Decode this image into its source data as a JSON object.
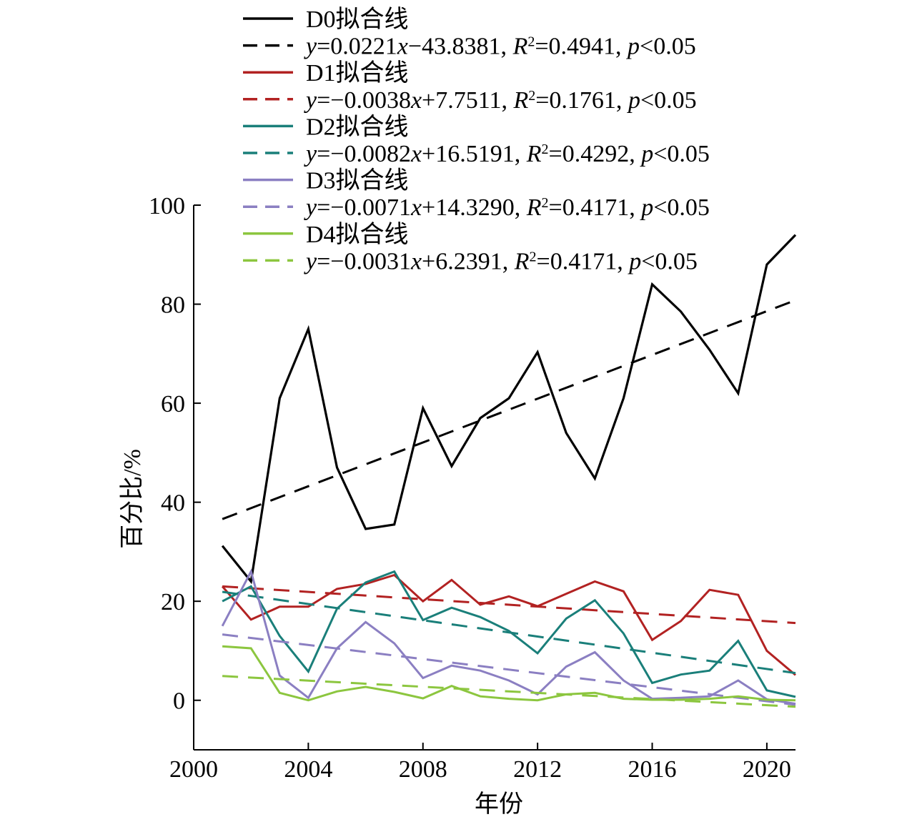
{
  "chart_data": {
    "type": "line",
    "xlabel": "年份",
    "ylabel": "百分比/%",
    "xlim": [
      2000,
      2021
    ],
    "ylim": [
      -10,
      100
    ],
    "xticks": [
      2000,
      2004,
      2008,
      2012,
      2016,
      2020
    ],
    "yticks": [
      0,
      20,
      40,
      60,
      80,
      100
    ],
    "xtick_labels": [
      "2000",
      "2004",
      "2008",
      "2012",
      "2016",
      "2020"
    ],
    "ytick_labels": [
      "0",
      "20",
      "40",
      "60",
      "80",
      "100"
    ],
    "legend_position": "top",
    "x": [
      2001,
      2002,
      2003,
      2004,
      2005,
      2006,
      2007,
      2008,
      2009,
      2010,
      2011,
      2012,
      2013,
      2014,
      2015,
      2016,
      2017,
      2018,
      2019,
      2020,
      2021
    ],
    "series": [
      {
        "name": "D0拟合线",
        "color": "#000000",
        "values": [
          31.2,
          24.0,
          61.0,
          75.0,
          47.0,
          34.6,
          35.5,
          59.0,
          47.3,
          57.0,
          61.0,
          70.3,
          54.0,
          44.8,
          61.0,
          84.0,
          78.5,
          70.8,
          62.0,
          88.0,
          94.0
        ],
        "fit": {
          "slope": 0.0221,
          "intercept": -43.8381,
          "y_start": 36.6,
          "y_end": 80.8,
          "eq_prefix": "y",
          "eq_mid": "=0.0221",
          "eq_x": "x",
          "eq_rest": "−43.8381, ",
          "r_label": "R",
          "r_sup": "2",
          "r_val": "=0.4941, ",
          "p_label": "p",
          "p_rest": "<0.05"
        }
      },
      {
        "name": "D1拟合线",
        "color": "#b22222",
        "values": [
          23.0,
          16.3,
          18.9,
          18.9,
          22.5,
          23.5,
          25.3,
          20.0,
          24.3,
          19.3,
          21.0,
          19.0,
          21.5,
          24.0,
          22.0,
          12.2,
          16.0,
          22.3,
          21.3,
          10.0,
          5.1
        ],
        "fit": {
          "slope": -0.0038,
          "intercept": 7.7511,
          "y_start": 23.0,
          "y_end": 15.6,
          "eq_prefix": "y",
          "eq_mid": "=−0.0038",
          "eq_x": "x",
          "eq_rest": "+7.7511, ",
          "r_label": "R",
          "r_sup": "2",
          "r_val": "=0.1761, ",
          "p_label": "p",
          "p_rest": "<0.05"
        }
      },
      {
        "name": "D2拟合线",
        "color": "#1a7f7a",
        "values": [
          20.0,
          23.0,
          13.0,
          5.8,
          18.5,
          23.8,
          26.0,
          16.2,
          18.7,
          16.8,
          14.0,
          9.5,
          16.5,
          20.2,
          13.5,
          3.5,
          5.2,
          6.0,
          12.0,
          2.0,
          0.7
        ],
        "fit": {
          "slope": -0.0082,
          "intercept": 16.5191,
          "y_start": 21.9,
          "y_end": 5.5,
          "eq_prefix": "y",
          "eq_mid": "=−0.0082",
          "eq_x": "x",
          "eq_rest": "+16.5191, ",
          "r_label": "R",
          "r_sup": "2",
          "r_val": "=0.4292, ",
          "p_label": "p",
          "p_rest": "<0.05"
        }
      },
      {
        "name": "D3拟合线",
        "color": "#8b7fc2",
        "values": [
          15.0,
          26.0,
          5.0,
          0.5,
          10.5,
          15.8,
          11.5,
          4.5,
          7.0,
          6.0,
          4.0,
          1.2,
          6.8,
          9.7,
          4.0,
          0.3,
          0.5,
          0.8,
          4.0,
          0.2,
          -0.7
        ],
        "fit": {
          "slope": -0.0071,
          "intercept": 14.329,
          "y_start": 13.3,
          "y_end": -0.9,
          "eq_prefix": "y",
          "eq_mid": "=−0.0071",
          "eq_x": "x",
          "eq_rest": "+14.3290, ",
          "r_label": "R",
          "r_sup": "2",
          "r_val": "=0.4171, ",
          "p_label": "p",
          "p_rest": "<0.05"
        }
      },
      {
        "name": "D4拟合线",
        "color": "#8cc63f",
        "values": [
          10.9,
          10.5,
          1.5,
          0.0,
          1.8,
          2.7,
          1.7,
          0.4,
          2.9,
          0.8,
          0.3,
          0.0,
          1.2,
          1.5,
          0.3,
          0.1,
          0.1,
          0.3,
          0.8,
          0.1,
          0.0
        ],
        "fit": {
          "slope": -0.0031,
          "intercept": 6.2391,
          "y_start": 4.9,
          "y_end": -1.3,
          "eq_prefix": "y",
          "eq_mid": "=−0.0031",
          "eq_x": "x",
          "eq_rest": "+6.2391, ",
          "r_label": "R",
          "r_sup": "2",
          "r_val": "=0.4171, ",
          "p_label": "p",
          "p_rest": "<0.05"
        }
      }
    ]
  }
}
